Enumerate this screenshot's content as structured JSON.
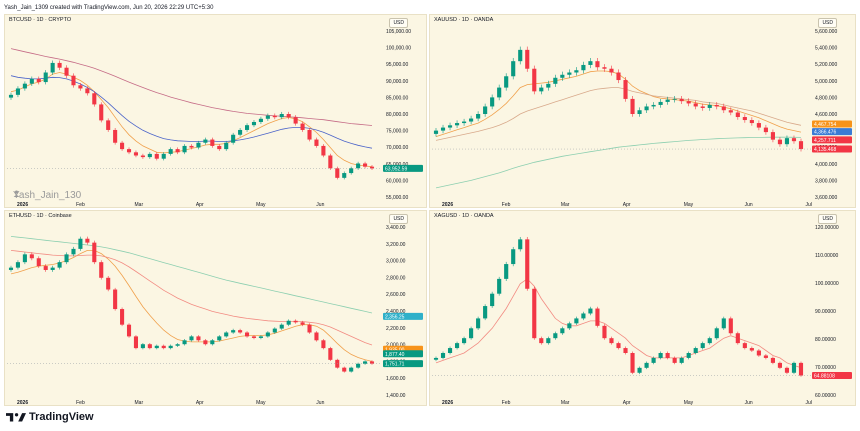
{
  "header": {
    "text": "Yash_Jain_1309 created with TradingView.com, Jun 20, 2026 22:29 UTC+5:30"
  },
  "footer": {
    "brand": "TradingView"
  },
  "panels": [
    {
      "title": "BTCUSD · 1D · CRYPTO",
      "currency_button": "USD",
      "watermark": "Yash_Jain_130",
      "price_axis": [
        "105,000.00",
        "100,000.00",
        "95,000.00",
        "90,000.00",
        "85,000.00",
        "80,000.00",
        "75,000.00",
        "70,000.00",
        "65,000.00",
        "60,000.00",
        "55,000.00"
      ],
      "time_axis": [
        "2026",
        "Feb",
        "Mar",
        "Apr",
        "May",
        "Jun"
      ],
      "price_labels": [
        {
          "text": "63,952.59",
          "value": 63952.59,
          "color": "#089981"
        }
      ]
    },
    {
      "title": "XAUUSD · 1D · OANDA",
      "currency_button": "USD",
      "price_axis": [
        "5,600.000",
        "5,400.000",
        "5,200.000",
        "5,000.000",
        "4,800.000",
        "4,600.000",
        "4,400.000",
        "4,200.000",
        "4,000.000",
        "3,800.000",
        "3,600.000"
      ],
      "time_axis": [
        "2026",
        "Feb",
        "Mar",
        "Apr",
        "May",
        "Jun",
        "Jul"
      ],
      "price_labels": [
        {
          "text": "4,467.754",
          "value": 4467.754,
          "color": "#f7931a"
        },
        {
          "text": "4,366.476",
          "value": 4366.476,
          "color": "#3a7bd5"
        },
        {
          "text": "4,257.711",
          "value": 4257.711,
          "color": "#f23645"
        },
        {
          "text": "4,135.468",
          "value": 4135.468,
          "color": "#f23645"
        }
      ]
    },
    {
      "title": "ETHUSD · 1D · Coinbase",
      "currency_button": "USD",
      "price_axis": [
        "3,400.00",
        "3,200.00",
        "3,000.00",
        "2,800.00",
        "2,600.00",
        "2,400.00",
        "2,200.00",
        "2,000.00",
        "1,800.00",
        "1,600.00",
        "1,400.00"
      ],
      "time_axis": [
        "2026",
        "Feb",
        "Mar",
        "Apr",
        "May",
        "Jun"
      ],
      "price_labels": [
        {
          "text": "2,356.25",
          "value": 2356.25,
          "color": "#2fb0c9"
        },
        {
          "text": "1,935.00",
          "value": 1935.0,
          "color": "#f7931a"
        },
        {
          "text": "1,877.40",
          "value": 1877.4,
          "color": "#089981"
        },
        {
          "text": "1,751.71",
          "value": 1751.71,
          "color": "#089981"
        }
      ]
    },
    {
      "title": "XAGUSD · 1D · OANDA",
      "currency_button": "USD",
      "price_axis": [
        "120.00000",
        "110.00000",
        "100.00000",
        "90.00000",
        "80.00000",
        "70.00000",
        "60.00000"
      ],
      "time_axis": [
        "2026",
        "Feb",
        "Mar",
        "Apr",
        "May",
        "Jun",
        "Jul"
      ],
      "price_labels": [
        {
          "text": "64.88108",
          "value": 64.88108,
          "color": "#f23645"
        }
      ]
    }
  ],
  "chart_data": [
    {
      "type": "candlestick",
      "title": "BTCUSD · 1D · CRYPTO",
      "ylim": [
        55000,
        107000
      ],
      "x": [
        "Jan",
        "Feb",
        "Mar",
        "Apr",
        "May",
        "Jun"
      ],
      "closes": [
        87000,
        89000,
        90500,
        92000,
        91000,
        94000,
        97000,
        95500,
        93000,
        90000,
        89000,
        87500,
        84000,
        79000,
        76000,
        72000,
        70000,
        69000,
        68000,
        67500,
        68500,
        67000,
        68500,
        70000,
        69000,
        71000,
        70500,
        72000,
        73000,
        71000,
        70000,
        72000,
        74500,
        76000,
        77500,
        78500,
        79500,
        80500,
        80000,
        81000,
        80000,
        78000,
        76000,
        73000,
        71000,
        68000,
        64000,
        61000,
        62500,
        64000,
        65500,
        64500,
        63952.59
      ],
      "moving_averages": [
        {
          "color": "#f0a04b",
          "values": [
            88000,
            88500,
            89500,
            90500,
            91000,
            92000,
            93500,
            94000,
            93500,
            92500,
            91500,
            90000,
            88000,
            85500,
            83000,
            80000,
            77000,
            74500,
            72500,
            71000,
            70000,
            69000,
            68800,
            69000,
            69200,
            69700,
            70200,
            70700,
            71300,
            71500,
            71500,
            71800,
            72600,
            73600,
            74700,
            75800,
            76900,
            78000,
            78800,
            79600,
            79900,
            79500,
            78600,
            77000,
            75200,
            73000,
            70500,
            68000,
            66500,
            65500,
            65000,
            64700,
            64500
          ]
        },
        {
          "color": "#4a63c9",
          "values": [
            93000,
            92500,
            92200,
            92000,
            92000,
            92200,
            92500,
            92400,
            92000,
            91300,
            90400,
            89300,
            88000,
            86300,
            84500,
            82500,
            80500,
            78700,
            77200,
            75900,
            74900,
            74000,
            73300,
            72900,
            72600,
            72500,
            72400,
            72400,
            72500,
            72500,
            72400,
            72400,
            72600,
            72900,
            73300,
            73800,
            74400,
            75000,
            75600,
            76200,
            76600,
            76800,
            76800,
            76500,
            76000,
            75300,
            74400,
            73400,
            72500,
            71800,
            71200,
            70700,
            70300
          ]
        },
        {
          "color": "#c56b86",
          "values": [
            101500,
            101000,
            100500,
            100000,
            99500,
            99000,
            98600,
            98200,
            97700,
            97200,
            96600,
            96000,
            95300,
            94500,
            93700,
            92800,
            91900,
            91000,
            90100,
            89300,
            88500,
            87700,
            87000,
            86300,
            85700,
            85100,
            84500,
            84000,
            83500,
            83000,
            82600,
            82200,
            81800,
            81500,
            81200,
            81000,
            80800,
            80600,
            80400,
            80300,
            80100,
            80000,
            79800,
            79600,
            79400,
            79200,
            78900,
            78600,
            78300,
            78000,
            77800,
            77600,
            77400
          ]
        }
      ]
    },
    {
      "type": "candlestick",
      "title": "XAUUSD · 1D · OANDA",
      "ylim": [
        3500,
        5700
      ],
      "x": [
        "Jan",
        "Feb",
        "Mar",
        "Apr",
        "May",
        "Jun",
        "Jul"
      ],
      "closes": [
        4380,
        4420,
        4450,
        4480,
        4500,
        4540,
        4600,
        4700,
        4820,
        4950,
        5100,
        5300,
        5450,
        5200,
        4900,
        4950,
        5000,
        5080,
        5120,
        5150,
        5180,
        5250,
        5300,
        5220,
        5200,
        5150,
        5050,
        4800,
        4600,
        4650,
        4700,
        4720,
        4760,
        4790,
        4800,
        4770,
        4740,
        4700,
        4680,
        4720,
        4700,
        4650,
        4620,
        4560,
        4520,
        4480,
        4420,
        4360,
        4260,
        4200,
        4280,
        4240,
        4135.468
      ],
      "moving_averages": [
        {
          "color": "#f0a04b",
          "values": [
            4300,
            4330,
            4360,
            4390,
            4420,
            4450,
            4480,
            4530,
            4590,
            4660,
            4740,
            4840,
            4950,
            4990,
            5000,
            5010,
            5020,
            5040,
            5060,
            5080,
            5100,
            5130,
            5160,
            5170,
            5170,
            5160,
            5130,
            5060,
            4970,
            4910,
            4870,
            4830,
            4810,
            4800,
            4790,
            4780,
            4770,
            4750,
            4730,
            4720,
            4710,
            4690,
            4670,
            4640,
            4610,
            4580,
            4550,
            4510,
            4470,
            4430,
            4400,
            4380,
            4360
          ]
        },
        {
          "color": "#d8a98b",
          "values": [
            4250,
            4270,
            4290,
            4310,
            4330,
            4350,
            4370,
            4395,
            4420,
            4450,
            4490,
            4540,
            4600,
            4640,
            4670,
            4700,
            4730,
            4760,
            4790,
            4820,
            4850,
            4880,
            4910,
            4930,
            4940,
            4950,
            4950,
            4930,
            4900,
            4880,
            4860,
            4840,
            4830,
            4820,
            4810,
            4800,
            4790,
            4780,
            4760,
            4750,
            4740,
            4720,
            4700,
            4680,
            4660,
            4640,
            4610,
            4580,
            4550,
            4520,
            4490,
            4470,
            4450
          ]
        },
        {
          "color": "#8ccfb0",
          "values": [
            3620,
            3640,
            3660,
            3680,
            3700,
            3720,
            3745,
            3770,
            3795,
            3820,
            3850,
            3880,
            3910,
            3935,
            3960,
            3980,
            4000,
            4020,
            4040,
            4055,
            4070,
            4085,
            4100,
            4115,
            4130,
            4145,
            4160,
            4170,
            4180,
            4190,
            4200,
            4210,
            4218,
            4226,
            4234,
            4242,
            4250,
            4256,
            4262,
            4268,
            4272,
            4276,
            4280,
            4283,
            4286,
            4288,
            4290,
            4291,
            4292,
            4292,
            4292,
            4291,
            4290
          ]
        }
      ]
    },
    {
      "type": "candlestick",
      "title": "ETHUSD · 1D · Coinbase",
      "ylim": [
        1350,
        3500
      ],
      "x": [
        "Jan",
        "Feb",
        "Mar",
        "Apr",
        "May",
        "Jun"
      ],
      "closes": [
        2980,
        3050,
        3150,
        3100,
        3000,
        2950,
        2980,
        3050,
        3150,
        3220,
        3350,
        3300,
        3050,
        2850,
        2700,
        2450,
        2250,
        2100,
        1950,
        2000,
        1950,
        1980,
        1950,
        1980,
        2000,
        2050,
        2100,
        2050,
        2000,
        2050,
        2100,
        2150,
        2180,
        2150,
        2100,
        2080,
        2100,
        2150,
        2200,
        2250,
        2300,
        2280,
        2250,
        2150,
        2050,
        1950,
        1800,
        1700,
        1650,
        1700,
        1750,
        1780,
        1751.71
      ],
      "moving_averages": [
        {
          "color": "#f0a04b",
          "values": [
            2900,
            2920,
            2950,
            2980,
            3000,
            3010,
            3020,
            3040,
            3070,
            3110,
            3160,
            3200,
            3200,
            3160,
            3090,
            3000,
            2880,
            2750,
            2610,
            2480,
            2370,
            2270,
            2180,
            2110,
            2060,
            2040,
            2030,
            2030,
            2030,
            2030,
            2040,
            2060,
            2080,
            2100,
            2110,
            2110,
            2110,
            2120,
            2140,
            2170,
            2200,
            2230,
            2250,
            2250,
            2230,
            2180,
            2100,
            2010,
            1930,
            1870,
            1830,
            1800,
            1780
          ]
        },
        {
          "color": "#f28b82",
          "values": [
            3200,
            3190,
            3180,
            3170,
            3160,
            3150,
            3140,
            3135,
            3130,
            3130,
            3135,
            3140,
            3140,
            3130,
            3110,
            3080,
            3040,
            2990,
            2930,
            2870,
            2810,
            2750,
            2690,
            2640,
            2590,
            2550,
            2510,
            2480,
            2450,
            2420,
            2400,
            2380,
            2360,
            2345,
            2330,
            2320,
            2310,
            2300,
            2295,
            2290,
            2290,
            2290,
            2290,
            2280,
            2270,
            2250,
            2220,
            2180,
            2140,
            2100,
            2060,
            2020,
            1990
          ]
        },
        {
          "color": "#8ccfb0",
          "values": [
            3380,
            3370,
            3360,
            3350,
            3340,
            3330,
            3320,
            3310,
            3300,
            3290,
            3280,
            3270,
            3260,
            3245,
            3230,
            3210,
            3190,
            3170,
            3145,
            3120,
            3095,
            3070,
            3045,
            3020,
            2995,
            2970,
            2945,
            2920,
            2895,
            2870,
            2845,
            2820,
            2800,
            2780,
            2760,
            2740,
            2720,
            2700,
            2680,
            2660,
            2640,
            2620,
            2600,
            2580,
            2560,
            2540,
            2520,
            2500,
            2480,
            2460,
            2440,
            2420,
            2400
          ]
        }
      ]
    },
    {
      "type": "candlestick",
      "title": "XAGUSD · 1D · OANDA",
      "ylim": [
        57,
        125
      ],
      "x": [
        "Jan",
        "Feb",
        "Mar",
        "Apr",
        "May",
        "Jun",
        "Jul"
      ],
      "closes": [
        72,
        74,
        76,
        78,
        80,
        84,
        88,
        93,
        98,
        104,
        110,
        116,
        120,
        100,
        80,
        78,
        80,
        82,
        84,
        86,
        88,
        90,
        92,
        85,
        80,
        78,
        76,
        74,
        66,
        68,
        70,
        72,
        74,
        72,
        70,
        72,
        74,
        76,
        78,
        80,
        84,
        88,
        82,
        78,
        76,
        75,
        73,
        72,
        70,
        68,
        66,
        70,
        64.88108
      ],
      "moving_averages": [
        {
          "color": "#f28b82",
          "values": [
            70,
            71,
            72,
            73,
            74,
            76,
            78,
            81,
            84,
            88,
            92,
            97,
            102,
            104,
            101,
            96,
            92,
            88,
            86,
            85,
            85,
            86,
            87,
            87,
            86,
            84,
            82,
            80,
            77,
            75,
            73,
            72,
            72,
            72,
            72,
            72,
            73,
            74,
            75,
            76,
            78,
            80,
            81,
            80,
            79,
            78,
            77,
            75,
            73,
            72,
            70,
            69,
            68
          ]
        }
      ]
    }
  ]
}
